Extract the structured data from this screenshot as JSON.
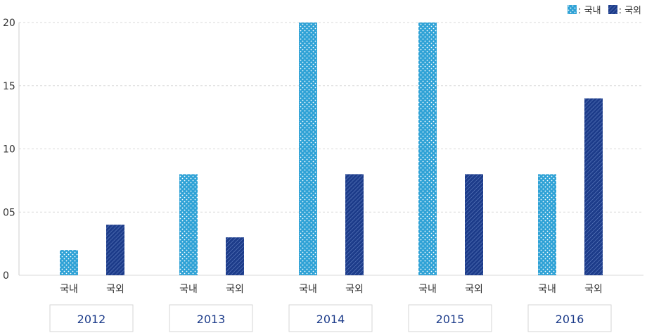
{
  "legend": [
    {
      "label": ": 국내",
      "color": "#2fa2d6"
    },
    {
      "label": ": 국외",
      "color": "#1d3c8a"
    }
  ],
  "chart_data": {
    "type": "bar",
    "categories": [
      "2012",
      "2013",
      "2014",
      "2015",
      "2016"
    ],
    "bar_labels": [
      "국내",
      "국외"
    ],
    "series": [
      {
        "name": "국내",
        "values": [
          2,
          8,
          20,
          20,
          8
        ],
        "color": "#2fa2d6"
      },
      {
        "name": "국외",
        "values": [
          4,
          3,
          8,
          8,
          14
        ],
        "color": "#1d3c8a"
      }
    ],
    "yticks": [
      "0",
      "05",
      "10",
      "15",
      "20"
    ],
    "ylim": [
      0,
      20
    ],
    "grid": true
  }
}
